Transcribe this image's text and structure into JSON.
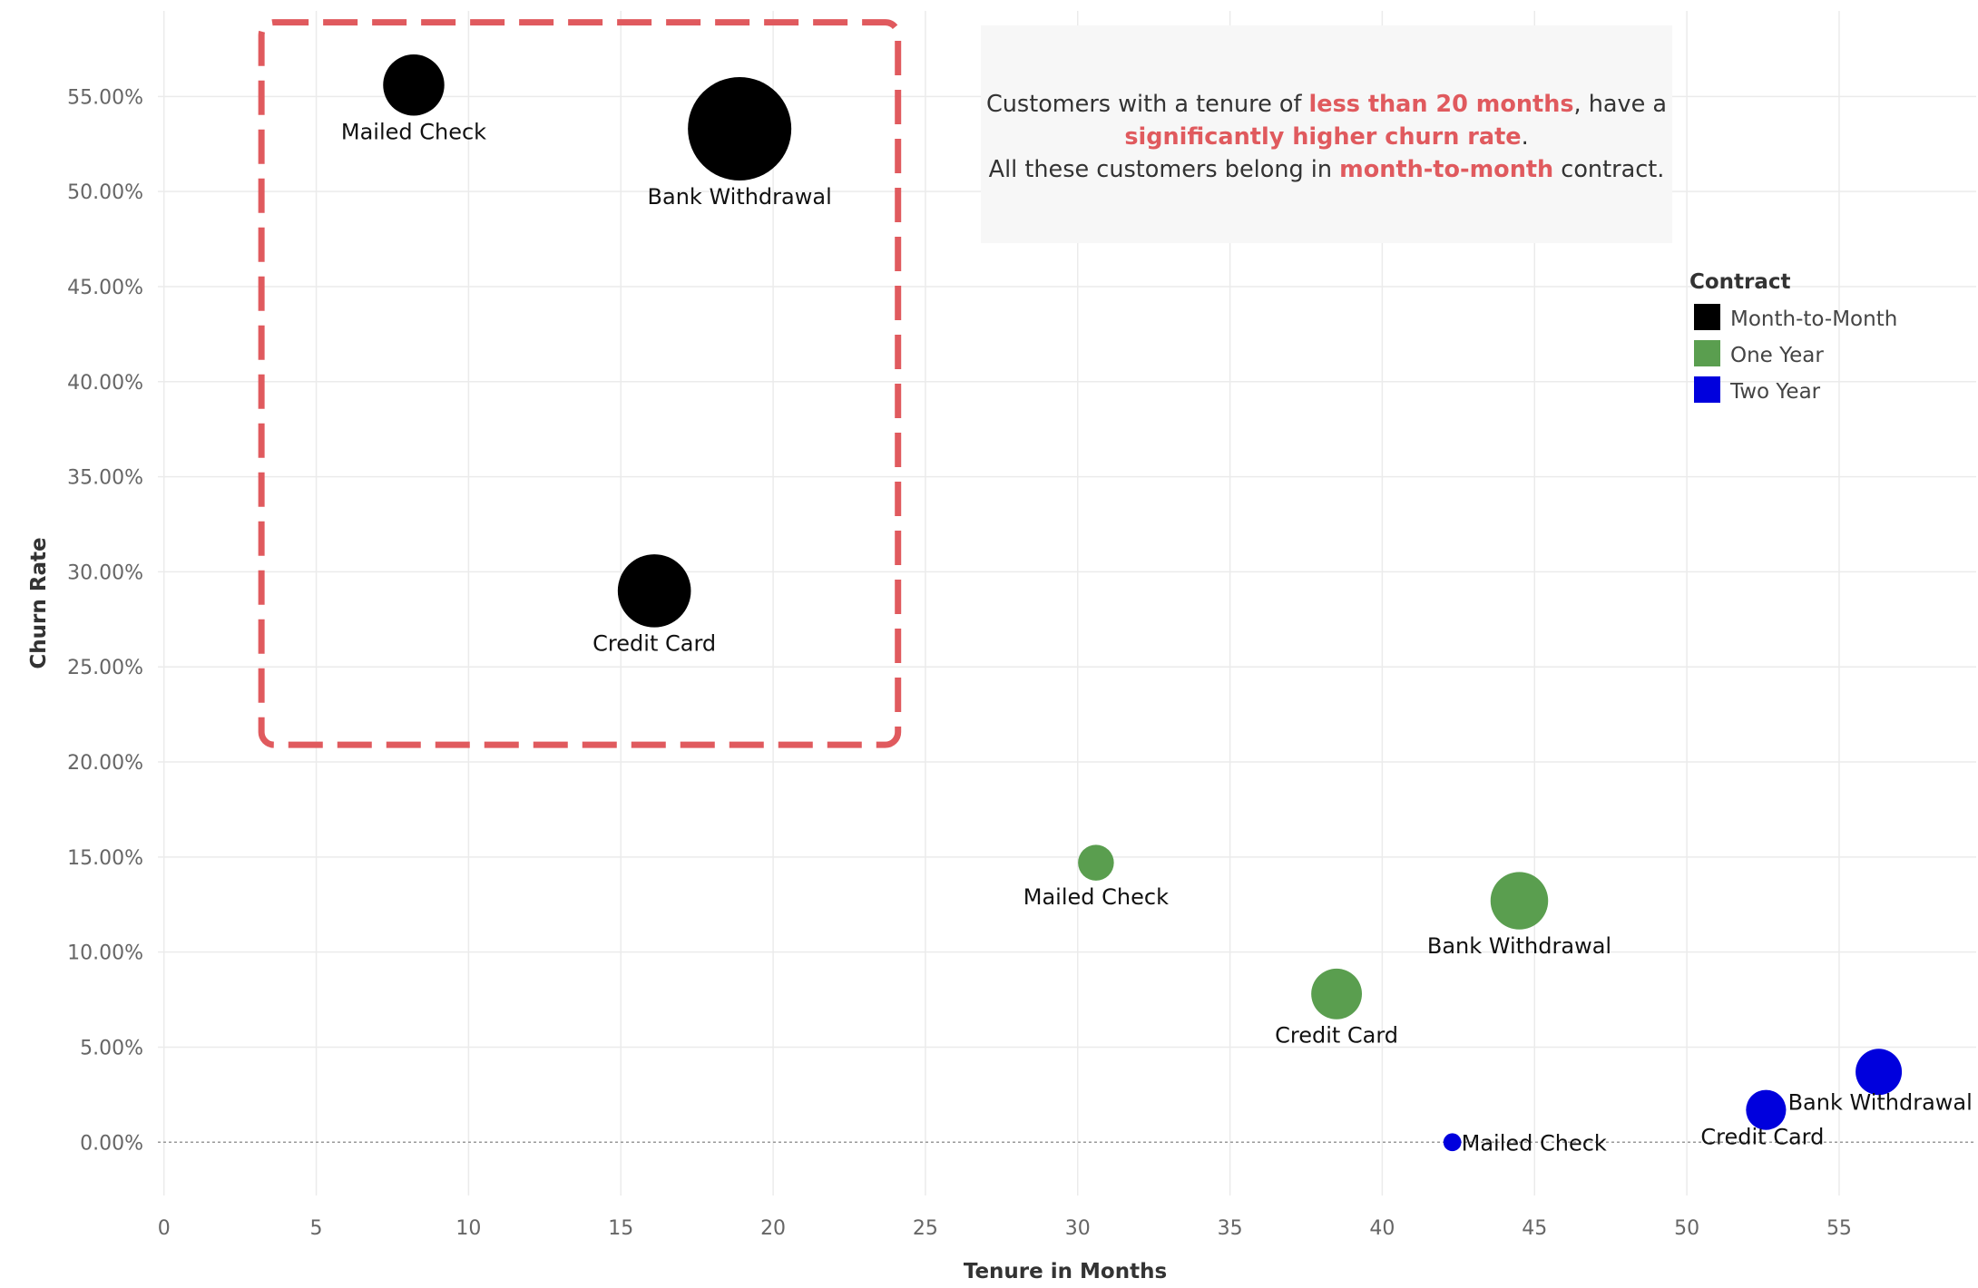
{
  "chart_data": {
    "type": "scatter",
    "xlabel": "Tenure in Months",
    "ylabel": "Churn Rate",
    "xlim": [
      -0.2,
      59.5
    ],
    "ylim": [
      -2.8,
      59.5
    ],
    "x_ticks": [
      0,
      5,
      10,
      15,
      20,
      25,
      30,
      35,
      40,
      45,
      50,
      55
    ],
    "y_ticks": [
      0,
      5,
      10,
      15,
      20,
      25,
      30,
      35,
      40,
      45,
      50,
      55
    ],
    "y_tick_format": "percent_2dp",
    "grid": true,
    "legend": {
      "title": "Contract",
      "position": "right",
      "items": [
        {
          "name": "Month-to-Month",
          "color": "#000000"
        },
        {
          "name": "One Year",
          "color": "#5a9e4f"
        },
        {
          "name": "Two Year",
          "color": "#0000dd"
        }
      ]
    },
    "series": [
      {
        "name": "Month-to-Month",
        "color": "#000000",
        "points": [
          {
            "label": "Mailed Check",
            "x": 8.2,
            "y": 55.6,
            "size": 0.35
          },
          {
            "label": "Bank Withdrawal",
            "x": 18.9,
            "y": 53.3,
            "size": 1.0
          },
          {
            "label": "Credit Card",
            "x": 16.1,
            "y": 29.0,
            "size": 0.5
          }
        ]
      },
      {
        "name": "One Year",
        "color": "#5a9e4f",
        "points": [
          {
            "label": "Mailed Check",
            "x": 30.6,
            "y": 14.7,
            "size": 0.12
          },
          {
            "label": "Bank Withdrawal",
            "x": 44.5,
            "y": 12.7,
            "size": 0.31
          },
          {
            "label": "Credit Card",
            "x": 38.5,
            "y": 7.8,
            "size": 0.24
          }
        ]
      },
      {
        "name": "Two Year",
        "color": "#0000dd",
        "points": [
          {
            "label": "Mailed Check",
            "x": 42.3,
            "y": 0.0,
            "size": 0.03
          },
          {
            "label": "Credit Card",
            "x": 52.6,
            "y": 1.7,
            "size": 0.15
          },
          {
            "label": "Bank Withdrawal",
            "x": 56.3,
            "y": 3.7,
            "size": 0.2
          }
        ]
      }
    ],
    "highlight_region": {
      "x": [
        3.2,
        24.1
      ],
      "y": [
        20.9,
        58.9
      ],
      "color": "#e05a5e",
      "style": "dashed"
    },
    "annotation": {
      "lines": [
        [
          {
            "text": "Customers with a tenure of ",
            "highlight": false
          },
          {
            "text": "less than 20 months",
            "highlight": true
          },
          {
            "text": ", have a",
            "highlight": false
          }
        ],
        [
          {
            "text": "significantly higher churn rate",
            "highlight": true
          },
          {
            "text": ".",
            "highlight": false
          }
        ],
        [
          {
            "text": "All these customers belong in ",
            "highlight": false
          },
          {
            "text": "month-to-month",
            "highlight": true
          },
          {
            "text": " contract.",
            "highlight": false
          }
        ]
      ],
      "box_color": "#f7f7f7",
      "highlight_color": "#e05a5e"
    }
  }
}
